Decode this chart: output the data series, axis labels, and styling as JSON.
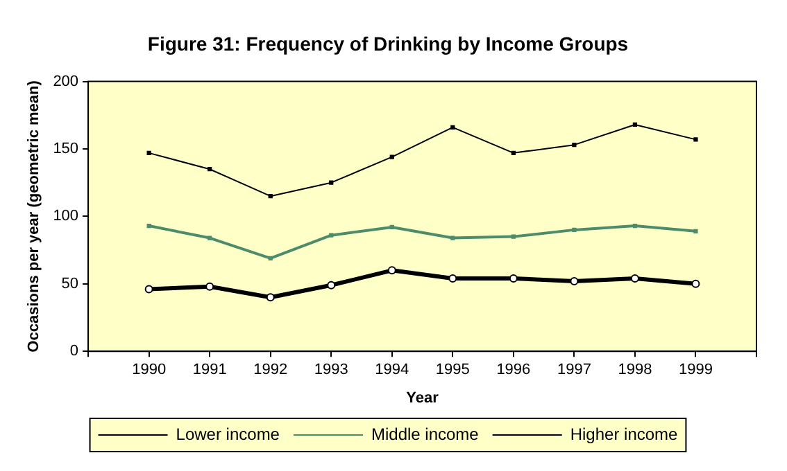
{
  "chart_data": {
    "type": "line",
    "title": "Figure 31: Frequency of Drinking by Income Groups",
    "xlabel": "Year",
    "ylabel": "Occasions per year (geometric mean)",
    "categories": [
      null,
      "1990",
      "1991",
      "1992",
      "1993",
      "1994",
      "1995",
      "1996",
      "1997",
      "1998",
      "1999",
      null
    ],
    "series": [
      {
        "name": "Lower income",
        "color": "#000000",
        "marker": "circle",
        "values": [
          null,
          46,
          48,
          40,
          49,
          60,
          54,
          54,
          52,
          54,
          50,
          null
        ]
      },
      {
        "name": "Middle income",
        "color": "#4d8c6a",
        "marker": "square",
        "values": [
          null,
          93,
          84,
          69,
          86,
          92,
          84,
          85,
          90,
          93,
          89,
          null
        ]
      },
      {
        "name": "Higher income",
        "color": "#000000",
        "marker": "square",
        "values": [
          null,
          147,
          135,
          115,
          125,
          144,
          166,
          147,
          153,
          168,
          157,
          null
        ]
      }
    ],
    "ylim": [
      0,
      200
    ],
    "yticks": [
      0,
      50,
      100,
      150,
      200
    ],
    "grid": false,
    "legend": "bottom",
    "line_style": "solid"
  }
}
